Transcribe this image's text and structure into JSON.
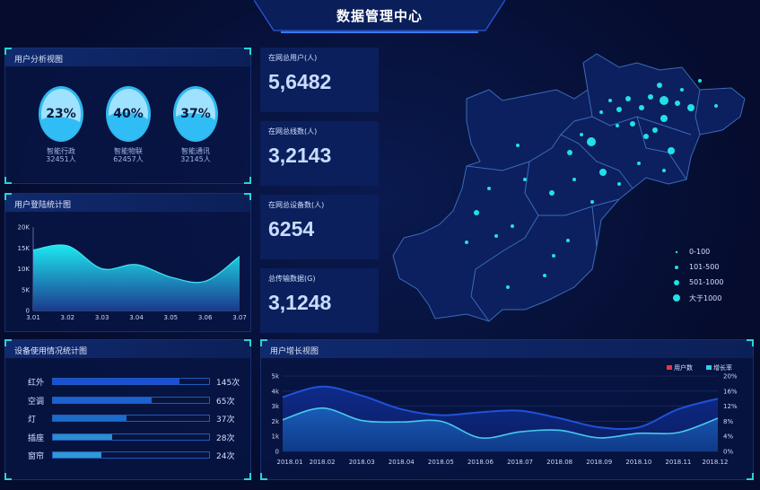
{
  "header": {
    "title": "数据管理中心"
  },
  "user_analysis": {
    "title": "用户分析视图",
    "items": [
      {
        "percent": "23%",
        "fill": 0.23,
        "name": "智能行政",
        "count": "32451人"
      },
      {
        "percent": "40%",
        "fill": 0.4,
        "name": "智能物联",
        "count": "62457人"
      },
      {
        "percent": "37%",
        "fill": 0.37,
        "name": "智能通讯",
        "count": "32145人"
      }
    ]
  },
  "stats": [
    {
      "label": "在网总用户(人)",
      "value": "5,6482"
    },
    {
      "label": "在网总线数(人)",
      "value": "3,2143"
    },
    {
      "label": "在网总设备数(人)",
      "value": "6254"
    },
    {
      "label": "总传输数据(G)",
      "value": "3,1248"
    }
  ],
  "device_usage": {
    "title": "设备使用情况统计图",
    "items": [
      {
        "name": "红外",
        "value": "145次",
        "fill": 0.81,
        "color": "#1a4fd8"
      },
      {
        "name": "空调",
        "value": "65次",
        "fill": 0.63,
        "color": "#1a62d0"
      },
      {
        "name": "灯",
        "value": "37次",
        "fill": 0.47,
        "color": "#1b6cc8"
      },
      {
        "name": "插座",
        "value": "28次",
        "fill": 0.38,
        "color": "#2a8ed0"
      },
      {
        "name": "窗帘",
        "value": "24次",
        "fill": 0.31,
        "color": "#2f98d8"
      }
    ]
  },
  "map": {
    "legend": [
      {
        "label": "0-100",
        "size": "small"
      },
      {
        "label": "101-500",
        "size": "medium"
      },
      {
        "label": "501-1000",
        "size": "large"
      },
      {
        "label": "大于1000",
        "size": "xlarge"
      }
    ],
    "dot_color": "#22e0e8"
  },
  "chart_data": [
    {
      "type": "area",
      "title": "用户登陆统计图",
      "categories": [
        "3.01",
        "3.02",
        "3.03",
        "3.04",
        "3.05",
        "3.06",
        "3.07"
      ],
      "values": [
        14500,
        15500,
        10000,
        11000,
        8000,
        7000,
        13000
      ],
      "yticks": [
        "0",
        "5K",
        "10K",
        "15K",
        "20K"
      ],
      "ylim": [
        0,
        20000
      ]
    },
    {
      "type": "line",
      "title": "用户增长视图",
      "categories": [
        "2018.01",
        "2018.02",
        "2018.03",
        "2018.04",
        "2018.05",
        "2018.06",
        "2018.07",
        "2018.08",
        "2018.09",
        "2018.10",
        "2018.11",
        "2018.12"
      ],
      "series": [
        {
          "name": "用户数",
          "axis": "left",
          "color": "#e8344a",
          "values": [
            3600,
            4300,
            3700,
            2800,
            2400,
            2600,
            2700,
            2200,
            1600,
            1600,
            2800,
            3500
          ]
        },
        {
          "name": "增长率",
          "axis": "right",
          "color": "#2ad0f0",
          "values": [
            8.4,
            11.5,
            8.2,
            7.8,
            8,
            3.6,
            5.2,
            5.6,
            3.6,
            4.8,
            5,
            8.8
          ]
        }
      ],
      "yticks_left": [
        "0",
        "1k",
        "2k",
        "3k",
        "4k",
        "5k"
      ],
      "yticks_right": [
        "0%",
        "4%",
        "8%",
        "12%",
        "16%",
        "20%"
      ],
      "ylim_left": [
        0,
        5000
      ],
      "ylim_right": [
        0,
        20
      ]
    }
  ]
}
